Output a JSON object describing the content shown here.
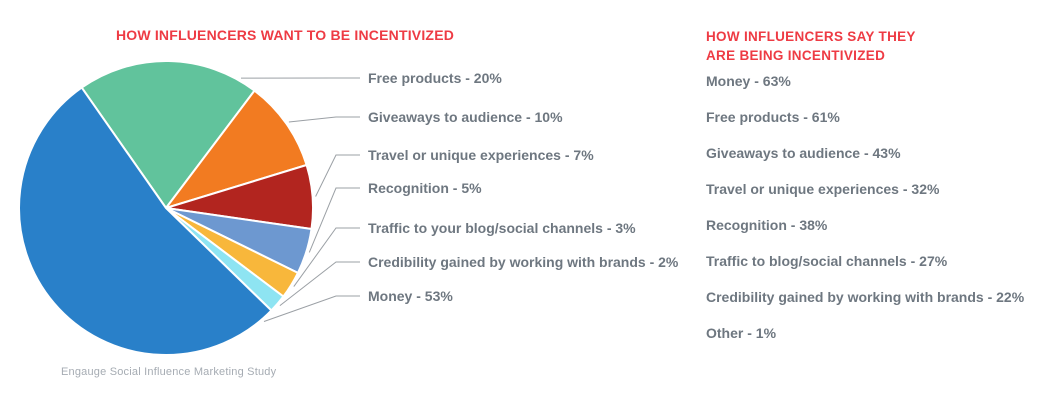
{
  "page": {
    "background": "#FFFFFF"
  },
  "left_panel": {
    "title": "HOW INFLUENCERS WANT TO BE INCENTIVIZED",
    "source": "Engauge Social Influence Marketing Study",
    "labels": [
      "Free products - 20%",
      "Giveaways to audience - 10%",
      "Travel or unique experiences - 7%",
      "Recognition - 5%",
      "Traffic to your blog/social channels - 3%",
      "Credibility gained by working with brands - 2%",
      "Money - 53%"
    ]
  },
  "right_panel": {
    "title_line1": "HOW INFLUENCERS SAY THEY",
    "title_line2": "ARE BEING INCENTIVIZED",
    "items": [
      "Money - 63%",
      "Free products - 61%",
      "Giveaways to audience - 43%",
      "Travel or unique experiences - 32%",
      "Recognition - 38%",
      "Traffic to blog/social channels - 27%",
      "Credibility gained by working with brands - 22%",
      "Other - 1%"
    ]
  },
  "chart_data": [
    {
      "type": "pie",
      "title": "HOW INFLUENCERS WANT TO BE INCENTIVIZED",
      "unit": "percent",
      "start_angle_deg": -35,
      "legend_position": "right-labels-with-leader-lines",
      "slices": [
        {
          "label": "Free products",
          "value": 20,
          "color": "#61C39C"
        },
        {
          "label": "Giveaways to audience",
          "value": 10,
          "color": "#F27B21"
        },
        {
          "label": "Travel or unique experiences",
          "value": 7,
          "color": "#B2251F"
        },
        {
          "label": "Recognition",
          "value": 5,
          "color": "#6D98D0"
        },
        {
          "label": "Traffic to your blog/social channels",
          "value": 3,
          "color": "#F8B73B"
        },
        {
          "label": "Credibility gained by working with brands",
          "value": 2,
          "color": "#8EE4F2"
        },
        {
          "label": "Money",
          "value": 53,
          "color": "#2980C9"
        }
      ]
    },
    {
      "type": "table",
      "title": "HOW INFLUENCERS SAY THEY ARE BEING INCENTIVIZED",
      "unit": "percent",
      "categories": [
        "Money",
        "Free products",
        "Giveaways to audience",
        "Travel or unique experiences",
        "Recognition",
        "Traffic to blog/social channels",
        "Credibility gained by working with brands",
        "Other"
      ],
      "values": [
        63,
        61,
        43,
        32,
        38,
        27,
        22,
        1
      ]
    }
  ],
  "colors": {
    "heading_red": "#EE3B44",
    "body_gray": "#6E7780",
    "source_gray": "#A6ACB3",
    "leader_line_gray": "#9BA0A5",
    "slice_separator": "#FFFFFF"
  }
}
